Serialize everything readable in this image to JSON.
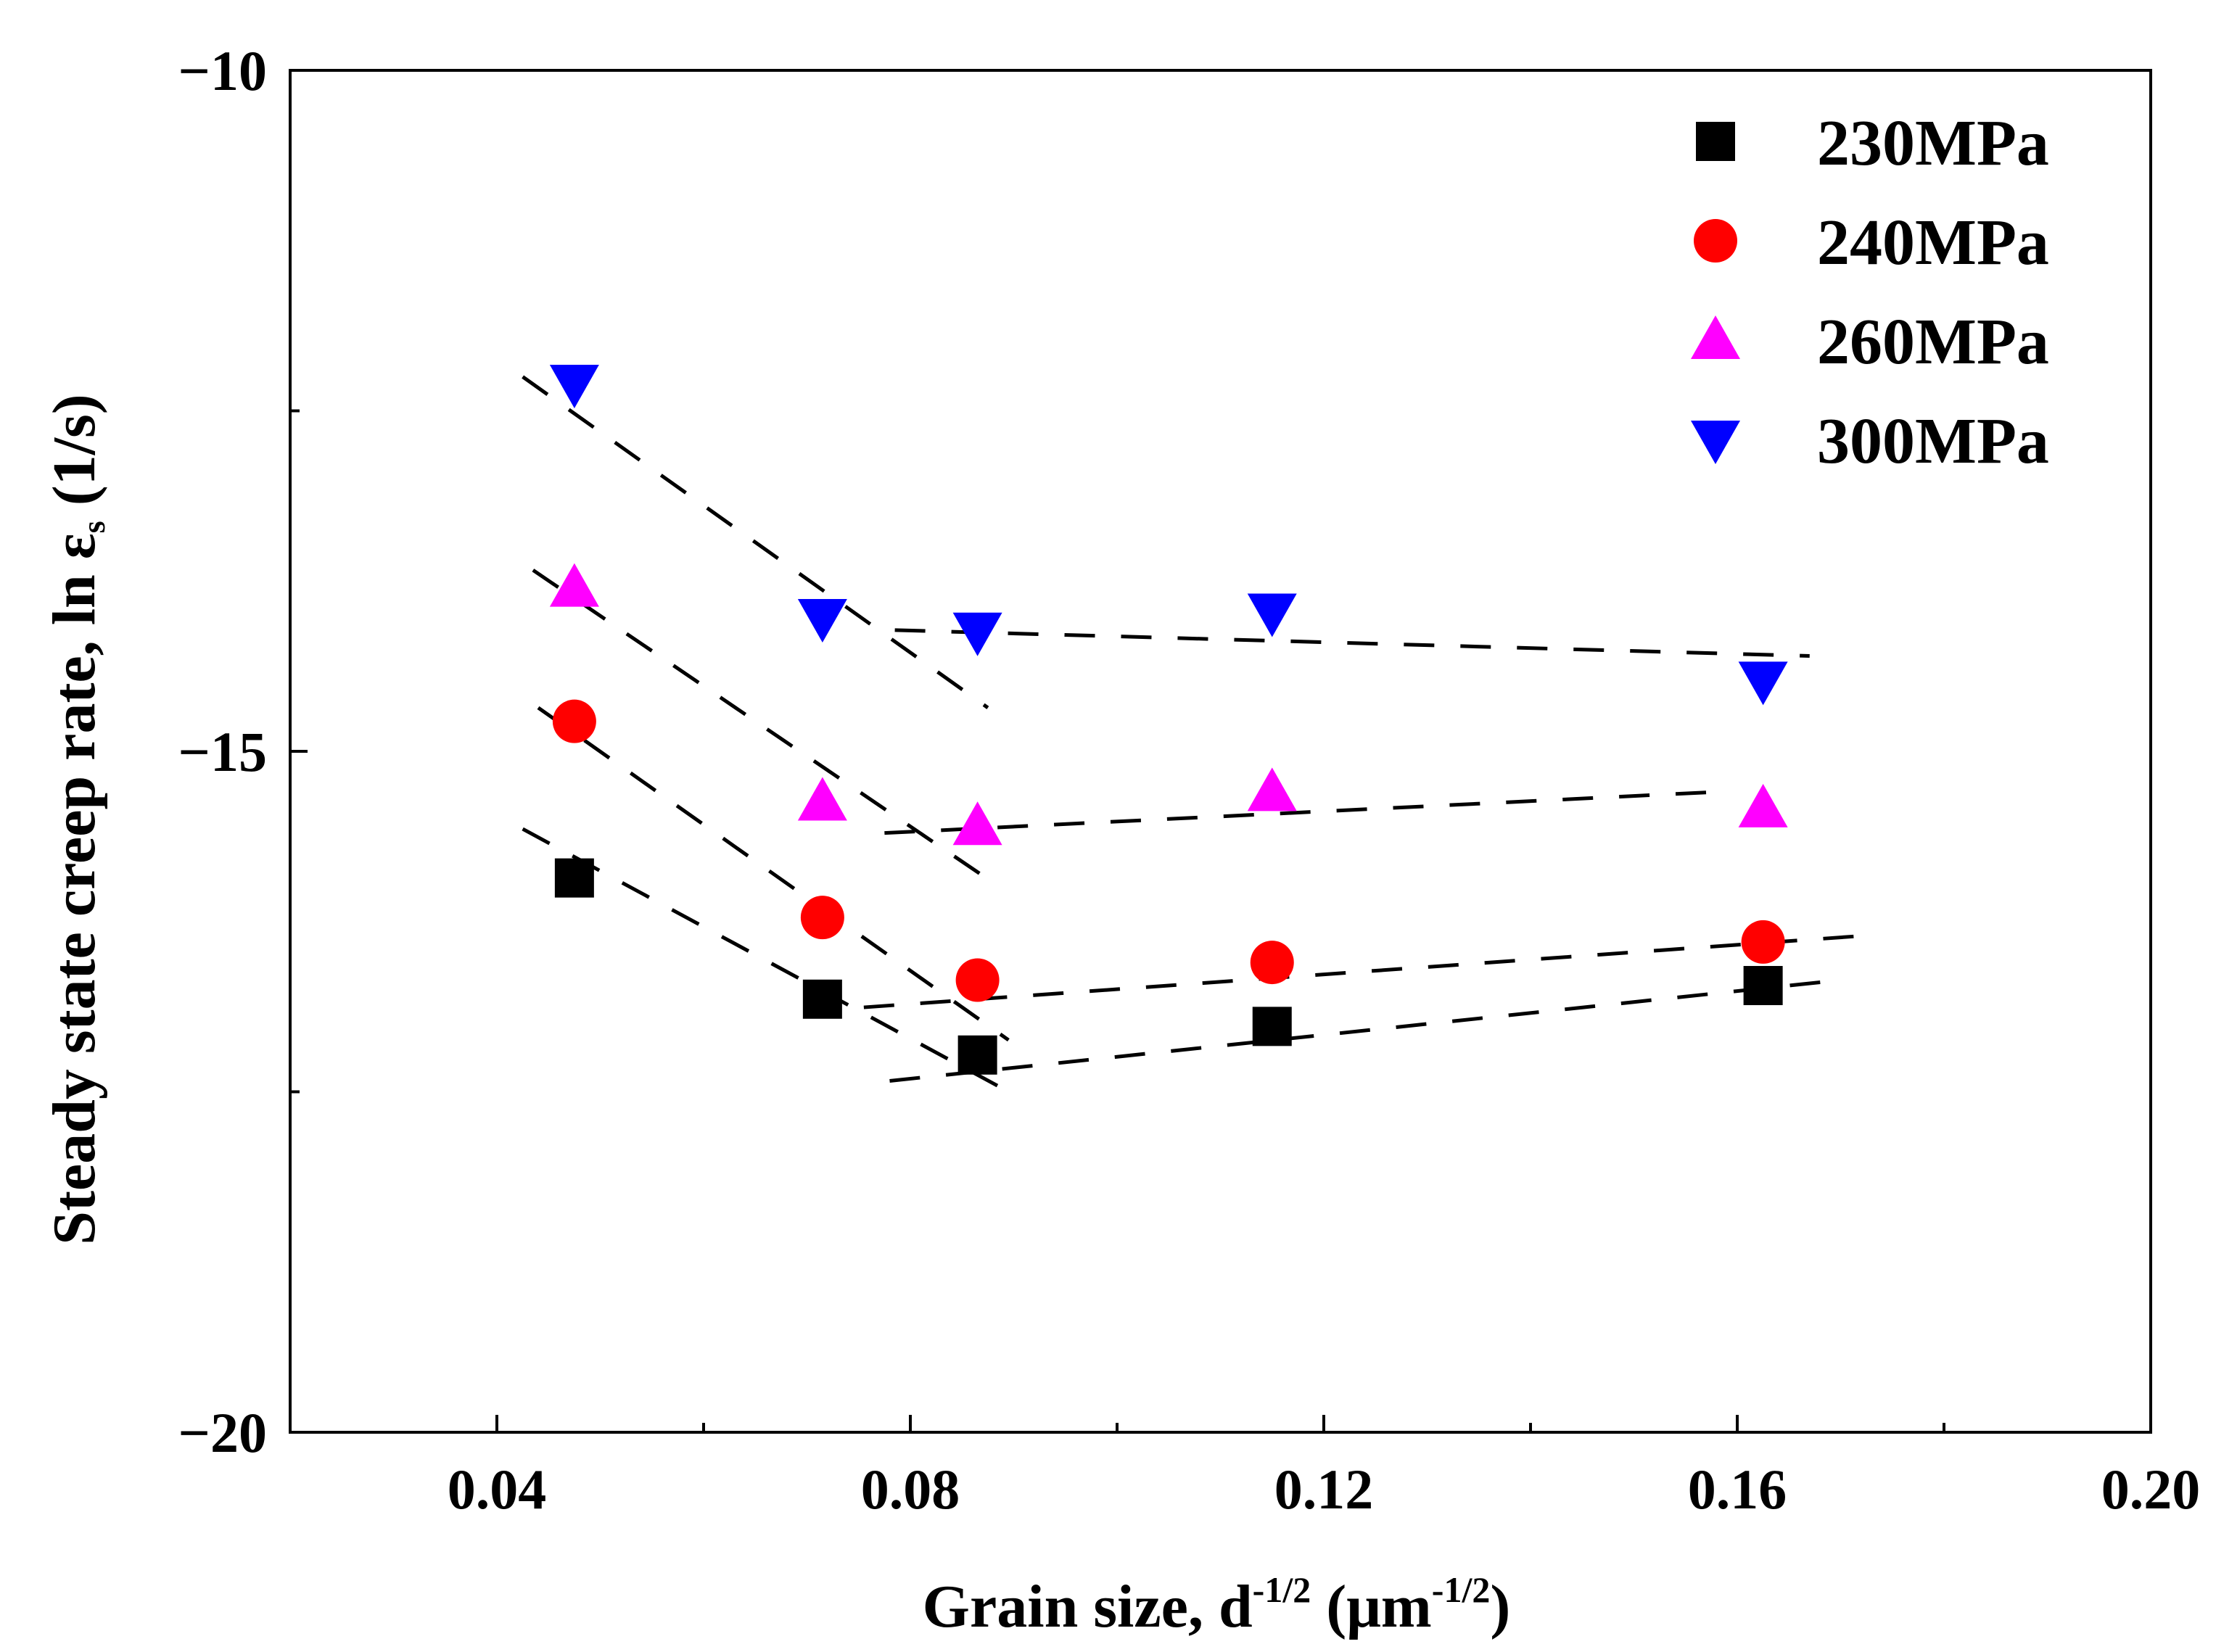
{
  "chart_data": {
    "type": "scatter",
    "xlim": [
      0.02,
      0.2
    ],
    "ylim": [
      -20,
      -10
    ],
    "x_ticks": [
      "0.04",
      "0.08",
      "0.12",
      "0.16",
      "0.20"
    ],
    "y_ticks": [
      "−10",
      "−15",
      "−20"
    ],
    "x_tick_values": [
      0.04,
      0.08,
      0.12,
      0.16,
      0.2
    ],
    "y_tick_values": [
      -10,
      -15,
      -20
    ],
    "xlabel": {
      "prefix": "Grain size, d",
      "exp1": "-1/2",
      "mid": " (μm",
      "exp2": "-1/2",
      "suffix": ")"
    },
    "ylabel": {
      "prefix": "Steady state creep rate, ln ε",
      "sub": "s",
      "suffix": " (1/s)"
    },
    "grid": false,
    "legend_position": "top-right",
    "series": [
      {
        "name": "230MPa",
        "marker": "square",
        "color": "#000000",
        "x": [
          0.0475,
          0.0715,
          0.0865,
          0.115,
          0.1625
        ],
        "y": [
          -15.93,
          -16.82,
          -17.23,
          -17.02,
          -16.72
        ]
      },
      {
        "name": "240MPa",
        "marker": "circle",
        "color": "#ff0000",
        "x": [
          0.0475,
          0.0715,
          0.0865,
          0.115,
          0.1625
        ],
        "y": [
          -14.78,
          -16.22,
          -16.68,
          -16.55,
          -16.4
        ]
      },
      {
        "name": "260MPa",
        "marker": "triangle-up",
        "color": "#ff00ff",
        "x": [
          0.0475,
          0.0715,
          0.0865,
          0.115,
          0.1625
        ],
        "y": [
          -13.8,
          -15.37,
          -15.55,
          -15.3,
          -15.42
        ]
      },
      {
        "name": "300MPa",
        "marker": "triangle-down",
        "color": "#0000ff",
        "x": [
          0.0475,
          0.0715,
          0.0865,
          0.115,
          0.1625
        ],
        "y": [
          -12.3,
          -14.02,
          -14.12,
          -13.98,
          -14.48
        ]
      }
    ],
    "fit_lines": [
      {
        "series": "230MPa",
        "segments": [
          [
            [
              0.0425,
              -15.57
            ],
            [
              0.09,
              -17.52
            ]
          ],
          [
            [
              0.078,
              -17.42
            ],
            [
              0.17,
              -16.68
            ]
          ]
        ]
      },
      {
        "series": "240MPa",
        "segments": [
          [
            [
              0.044,
              -14.68
            ],
            [
              0.0895,
              -17.12
            ]
          ],
          [
            [
              0.0755,
              -16.88
            ],
            [
              0.173,
              -16.35
            ]
          ]
        ]
      },
      {
        "series": "260MPa",
        "segments": [
          [
            [
              0.0435,
              -13.67
            ],
            [
              0.0885,
              -15.99
            ]
          ],
          [
            [
              0.0775,
              -15.6
            ],
            [
              0.1575,
              -15.3
            ]
          ]
        ]
      },
      {
        "series": "300MPa",
        "segments": [
          [
            [
              0.0425,
              -12.25
            ],
            [
              0.0875,
              -14.68
            ]
          ],
          [
            [
              0.0785,
              -14.11
            ],
            [
              0.167,
              -14.3
            ]
          ]
        ]
      }
    ]
  }
}
